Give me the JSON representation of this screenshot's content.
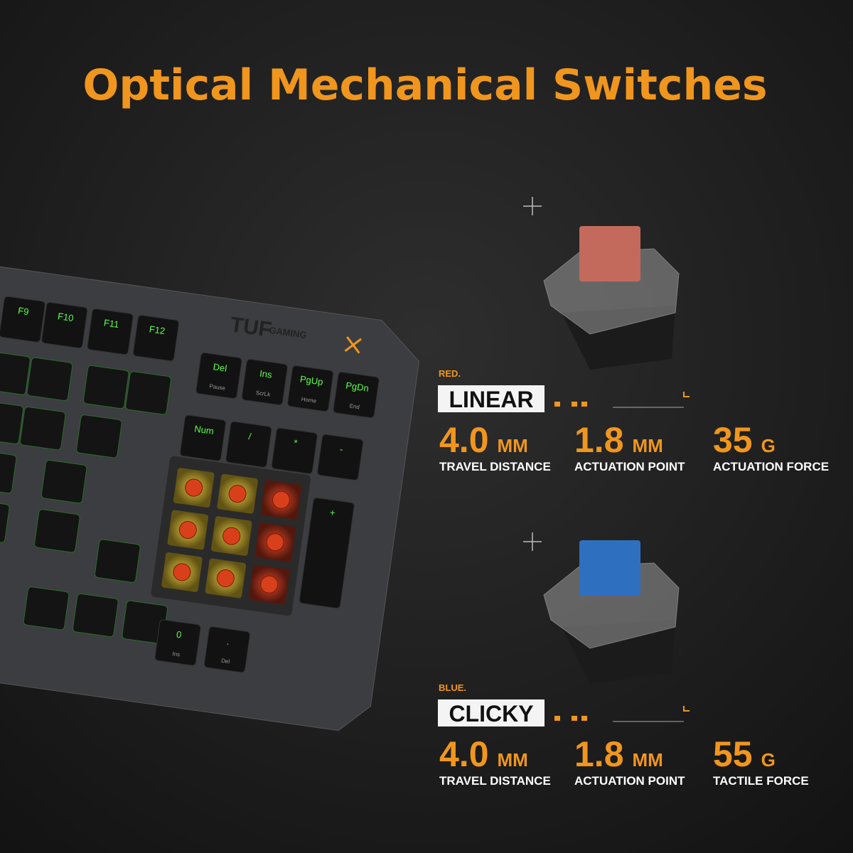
{
  "title": "Optical Mechanical Switches",
  "keyboard": {
    "brand": "TUF",
    "brand_sub": "GAMING",
    "keys": [
      {
        "label": "F9"
      },
      {
        "label": "F10"
      },
      {
        "label": "F11"
      },
      {
        "label": "F12"
      },
      {
        "label": "Del",
        "sub": "Pause"
      },
      {
        "label": "Ins",
        "sub": "ScrLk"
      },
      {
        "label": "PgUp",
        "sub": "Home"
      },
      {
        "label": "PgDn",
        "sub": "End"
      },
      {
        "label": "Num"
      },
      {
        "label": "/"
      },
      {
        "label": "*"
      },
      {
        "label": "-"
      },
      {
        "label": "+"
      },
      {
        "label": "0",
        "sub": "Ins"
      },
      {
        "label": ".",
        "sub": "Del"
      }
    ]
  },
  "switches": [
    {
      "color_label": "RED.",
      "type": "LINEAR",
      "specs": [
        {
          "value": "4.0",
          "unit": "MM",
          "label": "TRAVEL DISTANCE"
        },
        {
          "value": "1.8",
          "unit": "MM",
          "label": "ACTUATION POINT"
        },
        {
          "value": "35",
          "unit": "G",
          "label": "ACTUATION FORCE"
        }
      ]
    },
    {
      "color_label": "BLUE.",
      "type": "CLICKY",
      "specs": [
        {
          "value": "4.0",
          "unit": "MM",
          "label": "TRAVEL DISTANCE"
        },
        {
          "value": "1.8",
          "unit": "MM",
          "label": "ACTUATION POINT"
        },
        {
          "value": "55",
          "unit": "G",
          "label": "TACTILE FORCE"
        }
      ]
    }
  ]
}
